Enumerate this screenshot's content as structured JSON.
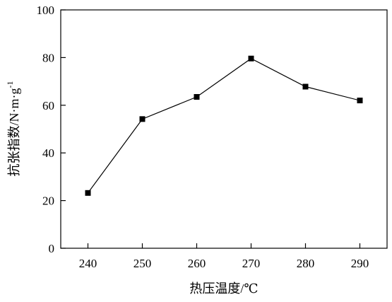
{
  "chart_data": {
    "type": "line",
    "x": [
      240,
      250,
      260,
      270,
      280,
      290
    ],
    "series": [
      {
        "values": [
          23.2,
          54.2,
          63.5,
          79.6,
          67.8,
          62.0
        ]
      }
    ],
    "xlabel": "热压温度/℃",
    "ylabel": "抗张指数/N·m·g",
    "ylabel_superscript": "-1",
    "xlim": [
      235,
      295
    ],
    "ylim": [
      0,
      100
    ],
    "xticks": [
      "240",
      "250",
      "260",
      "270",
      "280",
      "290"
    ],
    "yticks": [
      "0",
      "20",
      "40",
      "60",
      "80",
      "100"
    ],
    "marker": "square",
    "line_color": "#000000",
    "grid": false,
    "legend": "none"
  }
}
